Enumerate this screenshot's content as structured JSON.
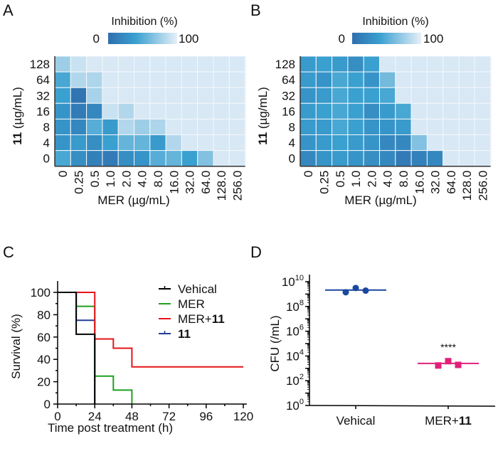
{
  "chart_data": [
    {
      "panel": "A",
      "type": "heatmap",
      "colorbar": {
        "title": "Inhibition (%)",
        "min_label": "0",
        "max_label": "100",
        "range": [
          0,
          100
        ],
        "colors": [
          "#2f6fae",
          "#3aa0d0",
          "#e6eff8"
        ]
      },
      "xlabel": "MER (µg/mL)",
      "ylabel_bold": "11",
      "ylabel_rest": " (µg/mL)",
      "x_categories": [
        "0",
        "0.25",
        "0.5",
        "1.0",
        "2.0",
        "4.0",
        "8.0",
        "16.0",
        "32.0",
        "64.0",
        "128.0",
        "256.0"
      ],
      "y_categories": [
        "128",
        "64",
        "32",
        "16",
        "8",
        "4",
        "0"
      ],
      "values": [
        [
          75,
          90,
          95,
          95,
          95,
          95,
          95,
          95,
          95,
          95,
          95,
          95
        ],
        [
          45,
          82,
          80,
          95,
          95,
          95,
          95,
          95,
          95,
          95,
          95,
          95
        ],
        [
          40,
          5,
          78,
          95,
          95,
          95,
          95,
          95,
          95,
          95,
          95,
          95
        ],
        [
          30,
          10,
          20,
          90,
          82,
          95,
          95,
          95,
          95,
          95,
          95,
          95
        ],
        [
          30,
          20,
          50,
          35,
          82,
          75,
          80,
          95,
          95,
          95,
          95,
          95
        ],
        [
          30,
          35,
          25,
          40,
          55,
          55,
          35,
          82,
          95,
          95,
          95,
          95
        ],
        [
          45,
          25,
          15,
          10,
          25,
          30,
          50,
          55,
          40,
          65,
          95,
          95
        ]
      ]
    },
    {
      "panel": "B",
      "type": "heatmap",
      "colorbar": {
        "title": "Inhibition (%)",
        "min_label": "0",
        "max_label": "100",
        "range": [
          0,
          100
        ],
        "colors": [
          "#2f6fae",
          "#3aa0d0",
          "#e6eff8"
        ]
      },
      "xlabel": "MER (µg/mL)",
      "ylabel_bold": "11",
      "ylabel_rest": " (µg/mL)",
      "x_categories": [
        "0",
        "0.25",
        "0.5",
        "1.0",
        "2.0",
        "4.0",
        "8.0",
        "16.0",
        "32.0",
        "64.0",
        "128.0",
        "256.0"
      ],
      "y_categories": [
        "128",
        "64",
        "32",
        "16",
        "8",
        "4",
        "0"
      ],
      "values": [
        [
          35,
          40,
          35,
          25,
          40,
          95,
          95,
          95,
          95,
          95,
          95,
          95
        ],
        [
          35,
          30,
          45,
          40,
          30,
          60,
          95,
          95,
          95,
          95,
          95,
          95
        ],
        [
          30,
          35,
          45,
          40,
          40,
          45,
          95,
          95,
          95,
          95,
          95,
          95
        ],
        [
          35,
          40,
          45,
          40,
          25,
          35,
          45,
          95,
          95,
          95,
          95,
          95
        ],
        [
          35,
          35,
          45,
          40,
          30,
          30,
          35,
          95,
          95,
          95,
          95,
          95
        ],
        [
          30,
          35,
          40,
          35,
          30,
          20,
          20,
          65,
          95,
          95,
          95,
          95
        ],
        [
          20,
          30,
          35,
          30,
          25,
          20,
          10,
          15,
          20,
          95,
          95,
          95
        ]
      ]
    },
    {
      "panel": "C",
      "type": "line",
      "subtype": "kaplan-meier step",
      "xlabel": "Time post treatment (h)",
      "ylabel": "Survival (%)",
      "xlim": [
        0,
        120
      ],
      "ylim": [
        0,
        100
      ],
      "xticks": [
        0,
        24,
        48,
        72,
        96,
        120
      ],
      "yticks": [
        0,
        20,
        40,
        60,
        80,
        100
      ],
      "legend_position": "top-right",
      "series": [
        {
          "name": "Vehical",
          "name_bold": "",
          "color": "#000000",
          "points": [
            [
              0,
              100
            ],
            [
              12,
              100
            ],
            [
              12,
              62.5
            ],
            [
              24,
              62.5
            ],
            [
              24,
              0
            ]
          ]
        },
        {
          "name": "MER",
          "name_bold": "",
          "color": "#1ea01e",
          "points": [
            [
              0,
              100
            ],
            [
              12,
              100
            ],
            [
              12,
              87.5
            ],
            [
              24,
              87.5
            ],
            [
              24,
              25
            ],
            [
              36,
              25
            ],
            [
              36,
              12.5
            ],
            [
              48,
              12.5
            ],
            [
              48,
              0
            ]
          ]
        },
        {
          "name": "MER+",
          "name_bold": "11",
          "color": "#e8141a",
          "points": [
            [
              0,
              100
            ],
            [
              24,
              100
            ],
            [
              24,
              58.3
            ],
            [
              36,
              58.3
            ],
            [
              36,
              50
            ],
            [
              48,
              50
            ],
            [
              48,
              33.3
            ],
            [
              120,
              33.3
            ]
          ]
        },
        {
          "name": "",
          "name_bold": "11",
          "color": "#1f3d99",
          "points": [
            [
              0,
              100
            ],
            [
              12,
              100
            ],
            [
              12,
              75
            ],
            [
              24,
              75
            ],
            [
              24,
              0
            ]
          ]
        }
      ]
    },
    {
      "panel": "D",
      "type": "scatter",
      "ylabel": "CFU (/mL)",
      "yscale": "log",
      "ylim": [
        1,
        10000000000
      ],
      "yticks": [
        {
          "base": "10",
          "exp": "0",
          "value": 1
        },
        {
          "base": "10",
          "exp": "2",
          "value": 100
        },
        {
          "base": "10",
          "exp": "4",
          "value": 10000
        },
        {
          "base": "10",
          "exp": "6",
          "value": 1000000
        },
        {
          "base": "10",
          "exp": "8",
          "value": 100000000
        },
        {
          "base": "10",
          "exp": "10",
          "value": 10000000000
        }
      ],
      "categories": [
        {
          "label": "Vehical",
          "label_bold": "",
          "color": "#1a47a0",
          "marker": "circle",
          "points": [
            1400000000,
            3100000000,
            1900000000
          ],
          "mean": 2100000000,
          "annotation": ""
        },
        {
          "label": "MER+",
          "label_bold": "11",
          "color": "#e0207a",
          "marker": "square",
          "points": [
            1700,
            3800,
            1900
          ],
          "mean": 2500,
          "annotation": "****"
        }
      ]
    }
  ]
}
